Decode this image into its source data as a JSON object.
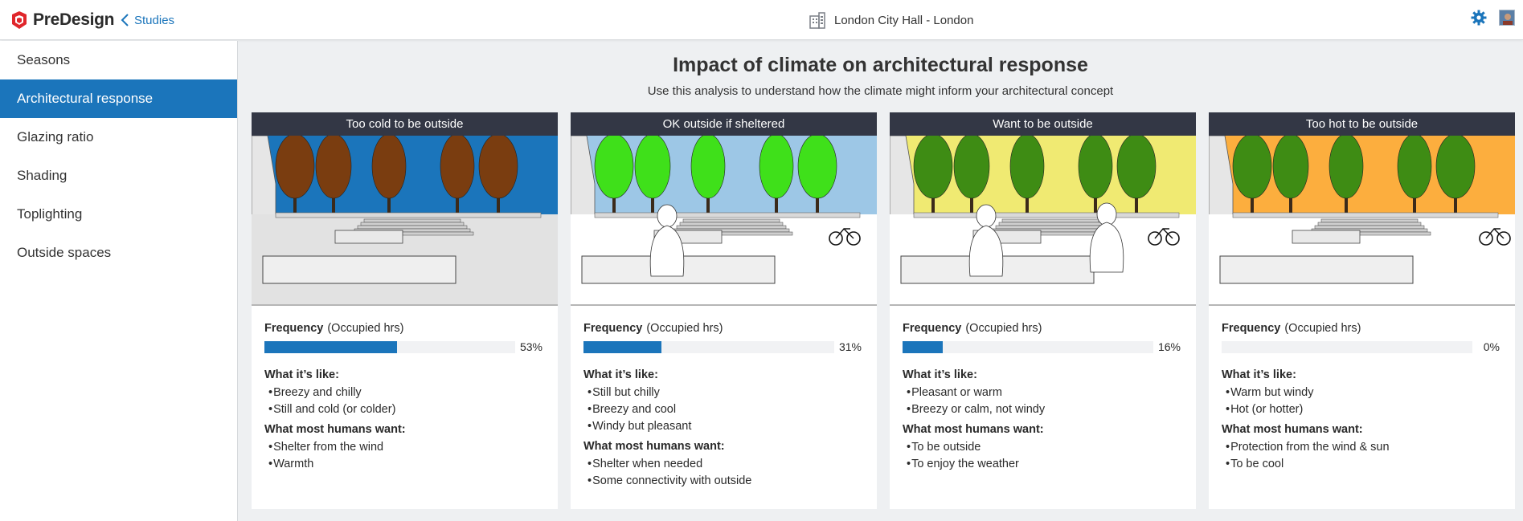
{
  "brand": {
    "name": "PreDesign"
  },
  "nav": {
    "back_label": "Studies"
  },
  "project": {
    "title": "London City Hall - London"
  },
  "sidebar": {
    "items": [
      {
        "label": "Seasons",
        "active": false
      },
      {
        "label": "Architectural response",
        "active": true
      },
      {
        "label": "Glazing ratio",
        "active": false
      },
      {
        "label": "Shading",
        "active": false
      },
      {
        "label": "Toplighting",
        "active": false
      },
      {
        "label": "Outside spaces",
        "active": false
      }
    ]
  },
  "main": {
    "title": "Impact of climate on architectural response",
    "subtitle": "Use this analysis to understand how the climate might inform your architectural concept"
  },
  "cards": [
    {
      "header": "Too cold to be outside",
      "sky": "#1b75bb",
      "trees": "#7a3d10",
      "frequency_label": "Frequency",
      "frequency_unit": "(Occupied hrs)",
      "frequency_value": 53,
      "frequency_text": "53%",
      "like_title": "What it’s like:",
      "like": [
        "Breezy and chilly",
        "Still and cold (or colder)"
      ],
      "want_title": "What most humans want:",
      "want": [
        "Shelter from the wind",
        "Warmth"
      ]
    },
    {
      "header": "OK outside if sheltered",
      "sky": "#9dc7e6",
      "trees": "#3fe01a",
      "frequency_label": "Frequency",
      "frequency_unit": "(Occupied hrs)",
      "frequency_value": 31,
      "frequency_text": "31%",
      "like_title": "What it’s like:",
      "like": [
        "Still but chilly",
        "Breezy and cool",
        "Windy but pleasant"
      ],
      "want_title": "What most humans want:",
      "want": [
        "Shelter when needed",
        "Some connectivity with outside"
      ]
    },
    {
      "header": "Want to be outside",
      "sky": "#f0ea72",
      "trees": "#3e8c14",
      "frequency_label": "Frequency",
      "frequency_unit": "(Occupied hrs)",
      "frequency_value": 16,
      "frequency_text": "16%",
      "like_title": "What it’s like:",
      "like": [
        "Pleasant or warm",
        "Breezy or calm, not windy"
      ],
      "want_title": "What most humans want:",
      "want": [
        "To be outside",
        "To enjoy the weather"
      ]
    },
    {
      "header": "Too hot to be outside",
      "sky": "#fcae3e",
      "trees": "#3e8c14",
      "frequency_label": "Frequency",
      "frequency_unit": "(Occupied hrs)",
      "frequency_value": 0,
      "frequency_text": "0%",
      "like_title": "What it’s like:",
      "like": [
        "Warm but windy",
        "Hot (or hotter)"
      ],
      "want_title": "What most humans want:",
      "want": [
        "Protection from the wind & sun",
        "To be cool"
      ]
    }
  ],
  "colors": {
    "accent": "#1b75bb",
    "card_header": "#333745"
  },
  "icons": {
    "brand": "sketchup-logo-icon",
    "back": "chevron-left-icon",
    "project": "building-icon",
    "settings": "gear-icon"
  }
}
